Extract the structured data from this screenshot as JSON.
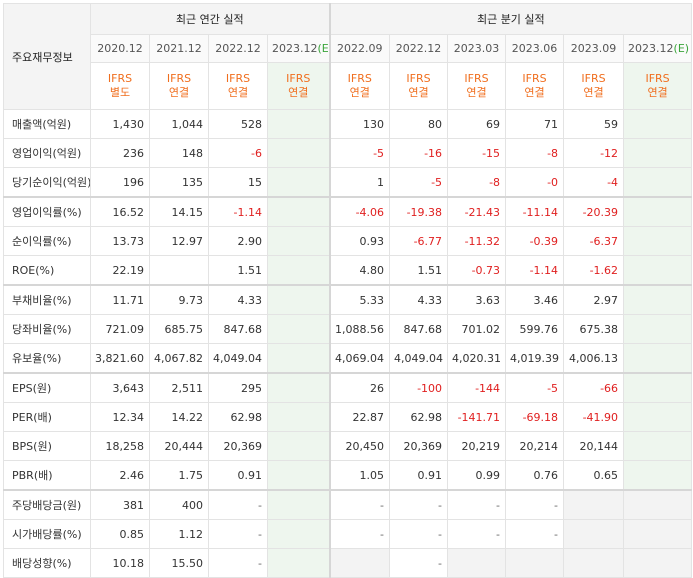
{
  "header": {
    "corner_label": "주요재무정보",
    "annual_title": "최근 연간 실적",
    "quarterly_title": "최근 분기 실적",
    "annual_periods": [
      "2020.12",
      "2021.12",
      "2022.12",
      "2023.12"
    ],
    "annual_estimate_mark": "(E)",
    "quarterly_periods": [
      "2022.09",
      "2022.12",
      "2023.03",
      "2023.06",
      "2023.09",
      "2023.12"
    ],
    "quarterly_estimate_mark": "(E)",
    "ifrs_top": "IFRS",
    "ifrs_annual": [
      "별도",
      "연결",
      "연결",
      "연결"
    ],
    "ifrs_quarterly": [
      "연결",
      "연결",
      "연결",
      "연결",
      "연결",
      "연결"
    ]
  },
  "rows": [
    {
      "label": "매출액(억원)",
      "annual": [
        "1,430",
        "1,044",
        "528",
        ""
      ],
      "quarterly": [
        "130",
        "80",
        "69",
        "71",
        "59",
        ""
      ]
    },
    {
      "label": "영업이익(억원)",
      "annual": [
        "236",
        "148",
        "-6",
        ""
      ],
      "quarterly": [
        "-5",
        "-16",
        "-15",
        "-8",
        "-12",
        ""
      ]
    },
    {
      "label": "당기순이익(억원)",
      "annual": [
        "196",
        "135",
        "15",
        ""
      ],
      "quarterly": [
        "1",
        "-5",
        "-8",
        "-0",
        "-4",
        ""
      ]
    },
    {
      "label": "영업이익률(%)",
      "annual": [
        "16.52",
        "14.15",
        "-1.14",
        ""
      ],
      "quarterly": [
        "-4.06",
        "-19.38",
        "-21.43",
        "-11.14",
        "-20.39",
        ""
      ]
    },
    {
      "label": "순이익률(%)",
      "annual": [
        "13.73",
        "12.97",
        "2.90",
        ""
      ],
      "quarterly": [
        "0.93",
        "-6.77",
        "-11.32",
        "-0.39",
        "-6.37",
        ""
      ]
    },
    {
      "label": "ROE(%)",
      "annual": [
        "22.19",
        "",
        "1.51",
        ""
      ],
      "quarterly": [
        "4.80",
        "1.51",
        "-0.73",
        "-1.14",
        "-1.62",
        ""
      ]
    },
    {
      "label": "부채비율(%)",
      "annual": [
        "11.71",
        "9.73",
        "4.33",
        ""
      ],
      "quarterly": [
        "5.33",
        "4.33",
        "3.63",
        "3.46",
        "2.97",
        ""
      ]
    },
    {
      "label": "당좌비율(%)",
      "annual": [
        "721.09",
        "685.75",
        "847.68",
        ""
      ],
      "quarterly": [
        "1,088.56",
        "847.68",
        "701.02",
        "599.76",
        "675.38",
        ""
      ]
    },
    {
      "label": "유보율(%)",
      "annual": [
        "3,821.60",
        "4,067.82",
        "4,049.04",
        ""
      ],
      "quarterly": [
        "4,069.04",
        "4,049.04",
        "4,020.31",
        "4,019.39",
        "4,006.13",
        ""
      ]
    },
    {
      "label": "EPS(원)",
      "annual": [
        "3,643",
        "2,511",
        "295",
        ""
      ],
      "quarterly": [
        "26",
        "-100",
        "-144",
        "-5",
        "-66",
        ""
      ]
    },
    {
      "label": "PER(배)",
      "annual": [
        "12.34",
        "14.22",
        "62.98",
        ""
      ],
      "quarterly": [
        "22.87",
        "62.98",
        "-141.71",
        "-69.18",
        "-41.90",
        ""
      ]
    },
    {
      "label": "BPS(원)",
      "annual": [
        "18,258",
        "20,444",
        "20,369",
        ""
      ],
      "quarterly": [
        "20,450",
        "20,369",
        "20,219",
        "20,214",
        "20,144",
        ""
      ]
    },
    {
      "label": "PBR(배)",
      "annual": [
        "2.46",
        "1.75",
        "0.91",
        ""
      ],
      "quarterly": [
        "1.05",
        "0.91",
        "0.99",
        "0.76",
        "0.65",
        ""
      ]
    },
    {
      "label": "주당배당금(원)",
      "annual": [
        "381",
        "400",
        "-",
        ""
      ],
      "quarterly": [
        "-",
        "-",
        "-",
        "-",
        "",
        ""
      ]
    },
    {
      "label": "시가배당률(%)",
      "annual": [
        "0.85",
        "1.12",
        "-",
        ""
      ],
      "quarterly": [
        "-",
        "-",
        "-",
        "-",
        "",
        ""
      ]
    },
    {
      "label": "배당성향(%)",
      "annual": [
        "10.18",
        "15.50",
        "-",
        ""
      ],
      "quarterly": [
        "",
        "-",
        "",
        "",
        "",
        ""
      ]
    }
  ],
  "colors": {
    "negative": "#e02020",
    "ifrs": "#f06e1e",
    "estimate_bg": "#eef6ee",
    "estimate_mark": "#3aa53a"
  }
}
